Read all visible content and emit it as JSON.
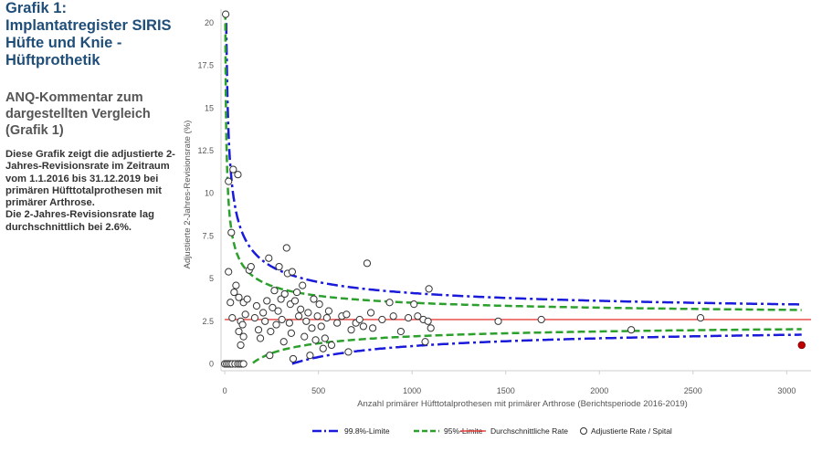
{
  "sidebar": {
    "title": "Grafik 1: Implantatregister SIRIS Hüfte und Knie - Hüftprothetik",
    "subtitle": "ANQ-Kommentar zum dargestellten Vergleich (Grafik 1)",
    "paragraph1": "Diese Grafik zeigt die adjustierte 2-Jahres-Revisionsrate im Zeitraum vom 1.1.2016 bis 31.12.2019 bei primären Hüfttotalprothesen mit primärer Arthrose.",
    "paragraph2": "Die 2-Jahres-Revisionsrate lag durchschnittlich bei 2.6%."
  },
  "colors": {
    "limit998": "#1a1adb",
    "limit95": "#2ca02c",
    "average": "#e8413c",
    "point_fill": "#ffffff",
    "point_stroke": "#333333",
    "highlight_point": "#c00000",
    "title": "#1f4e79"
  },
  "chart_data": {
    "type": "scatter",
    "xlabel": "Anzahl primärer Hüfttotalprothesen mit primärer Arthrose (Berichtsperiode 2016-2019)",
    "ylabel": "Adjustierte 2-Jahres-Revisionsrate (%)",
    "xlim": [
      -20,
      3130
    ],
    "ylim": [
      -0.4,
      20.8
    ],
    "xticks": [
      0,
      500,
      1000,
      1500,
      2000,
      2500,
      3000
    ],
    "xtick_labels": [
      "0",
      "500",
      "1000",
      "1500",
      "2000",
      "2500",
      "3000"
    ],
    "yticks": [
      0,
      2.5,
      5,
      7.5,
      10,
      12.5,
      15,
      17.5,
      20
    ],
    "ytick_labels": [
      "0",
      "2.5",
      "5",
      "7.5",
      "10",
      "12.5",
      "15",
      "17.5",
      "20"
    ],
    "grid": false,
    "legend_position": "bottom",
    "average_rate": 2.6,
    "series": [
      {
        "name": "99.8%-Limite",
        "kind": "limit",
        "z": 3.09,
        "color": "#1a1adb",
        "dash": "dashdot"
      },
      {
        "name": "95%-Limite",
        "kind": "limit",
        "z": 1.96,
        "color": "#2ca02c",
        "dash": "dash"
      },
      {
        "name": "Durchschnittliche Rate",
        "kind": "line",
        "color": "#e8413c"
      },
      {
        "name": "Adjustierte Rate / Spital",
        "kind": "scatter",
        "points": [
          [
            5,
            20.5
          ],
          [
            20,
            10.7
          ],
          [
            45,
            11.4
          ],
          [
            70,
            11.1
          ],
          [
            35,
            7.7
          ],
          [
            20,
            5.4
          ],
          [
            60,
            4.6
          ],
          [
            50,
            4.2
          ],
          [
            75,
            3.9
          ],
          [
            30,
            3.6
          ],
          [
            40,
            2.7
          ],
          [
            85,
            2.5
          ],
          [
            95,
            2.3
          ],
          [
            110,
            2.9
          ],
          [
            75,
            1.9
          ],
          [
            85,
            1.1
          ],
          [
            100,
            1.6
          ],
          [
            100,
            3.6
          ],
          [
            120,
            3.8
          ],
          [
            130,
            5.5
          ],
          [
            140,
            5.7
          ],
          [
            160,
            2.7
          ],
          [
            170,
            3.4
          ],
          [
            180,
            2.0
          ],
          [
            190,
            1.5
          ],
          [
            205,
            3.0
          ],
          [
            215,
            2.5
          ],
          [
            225,
            3.7
          ],
          [
            235,
            6.2
          ],
          [
            240,
            0.5
          ],
          [
            245,
            1.9
          ],
          [
            255,
            3.3
          ],
          [
            265,
            4.3
          ],
          [
            275,
            2.3
          ],
          [
            285,
            3.1
          ],
          [
            290,
            5.7
          ],
          [
            300,
            3.8
          ],
          [
            305,
            2.6
          ],
          [
            315,
            1.3
          ],
          [
            320,
            4.1
          ],
          [
            330,
            6.8
          ],
          [
            335,
            5.3
          ],
          [
            345,
            2.4
          ],
          [
            350,
            3.5
          ],
          [
            355,
            1.8
          ],
          [
            360,
            5.4
          ],
          [
            365,
            0.3
          ],
          [
            375,
            3.7
          ],
          [
            385,
            4.2
          ],
          [
            395,
            2.8
          ],
          [
            405,
            3.2
          ],
          [
            415,
            4.6
          ],
          [
            425,
            1.6
          ],
          [
            435,
            2.5
          ],
          [
            445,
            3.0
          ],
          [
            455,
            0.5
          ],
          [
            465,
            2.1
          ],
          [
            475,
            3.8
          ],
          [
            485,
            1.4
          ],
          [
            495,
            2.8
          ],
          [
            505,
            3.5
          ],
          [
            515,
            2.2
          ],
          [
            525,
            0.9
          ],
          [
            535,
            1.5
          ],
          [
            545,
            2.7
          ],
          [
            555,
            3.1
          ],
          [
            570,
            1.1
          ],
          [
            600,
            2.4
          ],
          [
            625,
            2.8
          ],
          [
            650,
            2.9
          ],
          [
            660,
            0.7
          ],
          [
            675,
            2.0
          ],
          [
            700,
            2.4
          ],
          [
            720,
            2.6
          ],
          [
            740,
            2.2
          ],
          [
            760,
            5.9
          ],
          [
            780,
            3.0
          ],
          [
            790,
            2.1
          ],
          [
            840,
            2.6
          ],
          [
            880,
            3.6
          ],
          [
            900,
            2.8
          ],
          [
            940,
            1.9
          ],
          [
            980,
            2.7
          ],
          [
            1010,
            3.5
          ],
          [
            1030,
            2.8
          ],
          [
            1060,
            2.6
          ],
          [
            1070,
            1.3
          ],
          [
            1085,
            2.5
          ],
          [
            1090,
            4.4
          ],
          [
            1100,
            2.1
          ],
          [
            1460,
            2.5
          ],
          [
            1690,
            2.6
          ],
          [
            2170,
            2.0
          ],
          [
            2540,
            2.7
          ]
        ]
      },
      {
        "name": "",
        "kind": "highlight",
        "points": [
          [
            3080,
            1.1
          ]
        ]
      }
    ],
    "origin_points": [
      [
        0,
        0
      ],
      [
        10,
        0
      ],
      [
        20,
        0
      ],
      [
        30,
        0
      ],
      [
        40,
        0
      ],
      [
        55,
        0
      ],
      [
        70,
        0
      ],
      [
        80,
        0
      ],
      [
        90,
        0
      ],
      [
        100,
        0
      ]
    ]
  }
}
